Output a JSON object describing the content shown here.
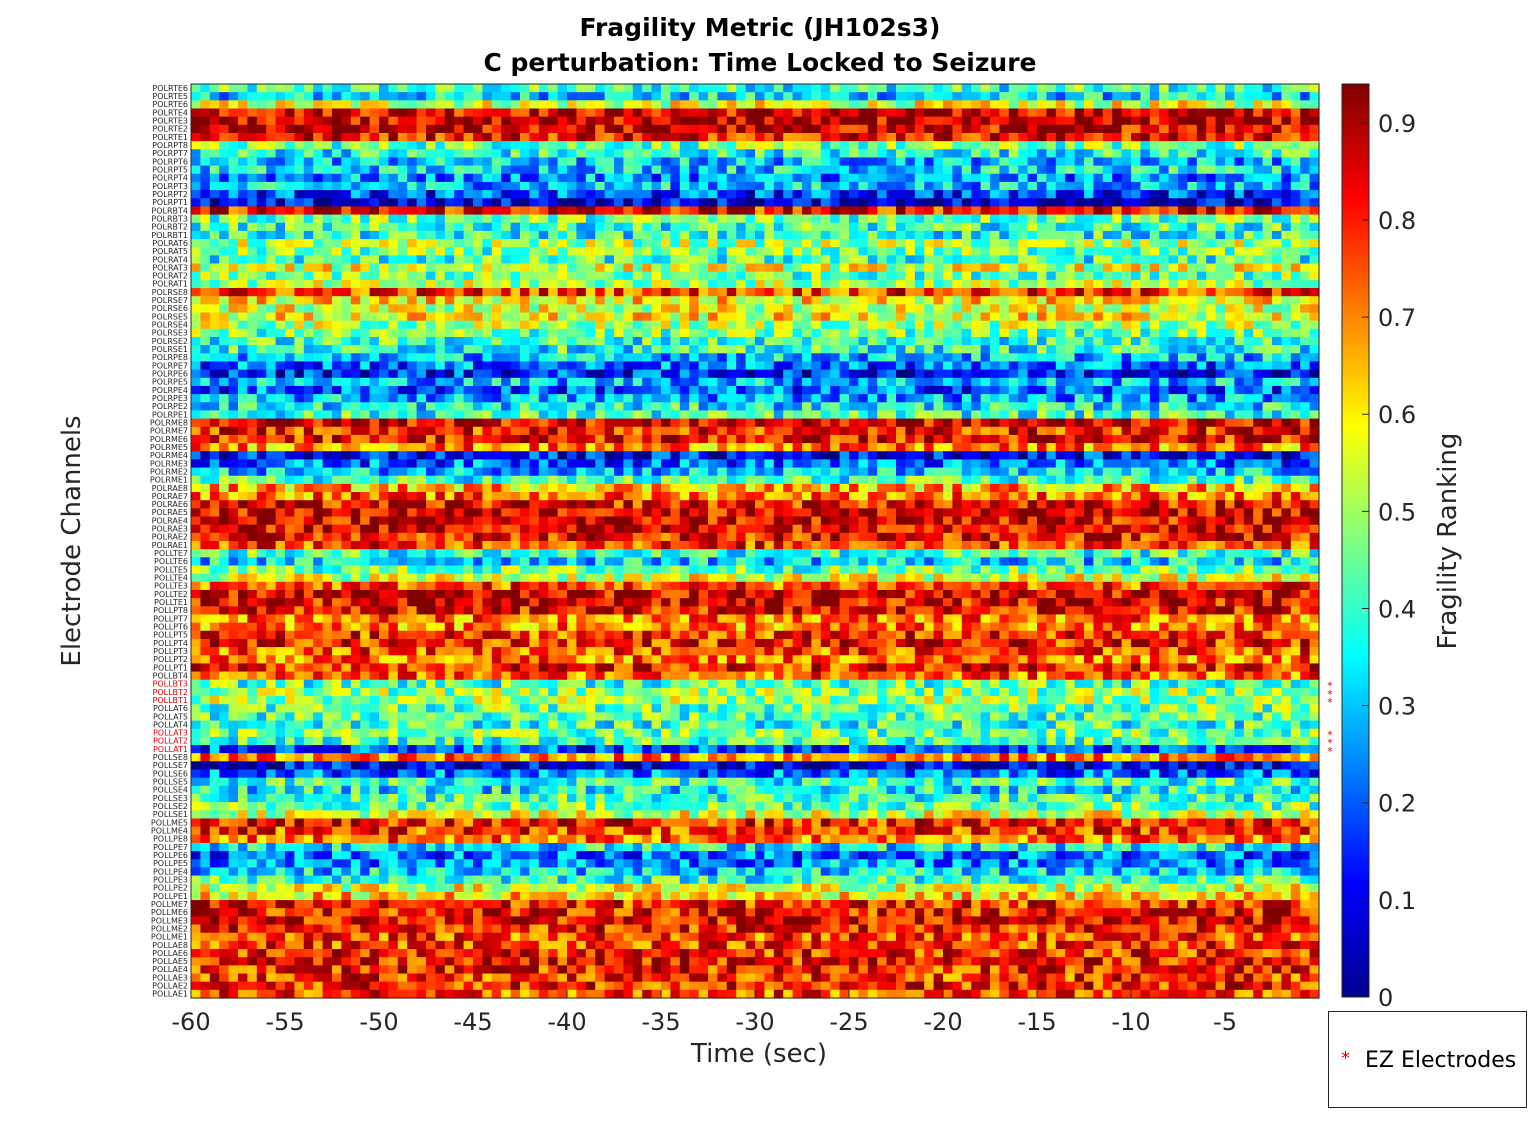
{
  "chart_data": {
    "type": "heatmap",
    "title": "Fragility Metric (JH102s3)",
    "subtitle": "C perturbation:  Time Locked to Seizure",
    "xlabel": "Time (sec)",
    "ylabel": "Electrode Channels",
    "xlim": [
      -60,
      0
    ],
    "x_ticks": [
      "-60",
      "-55",
      "-50",
      "-45",
      "-40",
      "-35",
      "-30",
      "-25",
      "-20",
      "-15",
      "-10",
      "-5"
    ],
    "colorbar": {
      "label": "Fragility Ranking",
      "colormap": "jet",
      "clim": [
        0,
        0.94
      ],
      "ticks": [
        "0",
        "0.1",
        "0.2",
        "0.3",
        "0.4",
        "0.5",
        "0.6",
        "0.7",
        "0.8",
        "0.9"
      ]
    },
    "n_time_windows": 120,
    "channels": [
      {
        "name": "POLRTE6",
        "level": 0.4
      },
      {
        "name": "POLRTE5",
        "level": 0.32
      },
      {
        "name": "POLRTE6",
        "level": 0.55
      },
      {
        "name": "POLRTE4",
        "level": 0.86
      },
      {
        "name": "POLRTE3",
        "level": 0.88
      },
      {
        "name": "POLRTE2",
        "level": 0.86
      },
      {
        "name": "POLRTE1",
        "level": 0.83
      },
      {
        "name": "POLRPT8",
        "level": 0.45
      },
      {
        "name": "POLRPT7",
        "level": 0.38
      },
      {
        "name": "POLRPT6",
        "level": 0.3
      },
      {
        "name": "POLRPT5",
        "level": 0.33
      },
      {
        "name": "POLRPT4",
        "level": 0.25
      },
      {
        "name": "POLRPT3",
        "level": 0.3
      },
      {
        "name": "POLRPT2",
        "level": 0.18
      },
      {
        "name": "POLRPT1",
        "level": 0.08
      },
      {
        "name": "POLRBT4",
        "level": 0.82
      },
      {
        "name": "POLRBT3",
        "level": 0.45
      },
      {
        "name": "POLRBT2",
        "level": 0.4
      },
      {
        "name": "POLRBT1",
        "level": 0.38
      },
      {
        "name": "POLRAT6",
        "level": 0.5
      },
      {
        "name": "POLRAT5",
        "level": 0.45
      },
      {
        "name": "POLRAT4",
        "level": 0.4
      },
      {
        "name": "POLRAT3",
        "level": 0.55
      },
      {
        "name": "POLRAT2",
        "level": 0.45
      },
      {
        "name": "POLRAT1",
        "level": 0.5
      },
      {
        "name": "POLRSE8",
        "level": 0.78
      },
      {
        "name": "POLRSE7",
        "level": 0.6
      },
      {
        "name": "POLRSE6",
        "level": 0.55
      },
      {
        "name": "POLRSE5",
        "level": 0.58
      },
      {
        "name": "POLRSE4",
        "level": 0.5
      },
      {
        "name": "POLRSE3",
        "level": 0.45
      },
      {
        "name": "POLRSE2",
        "level": 0.4
      },
      {
        "name": "POLRSE1",
        "level": 0.38
      },
      {
        "name": "POLRPE8",
        "level": 0.3
      },
      {
        "name": "POLRPE7",
        "level": 0.22
      },
      {
        "name": "POLRPE6",
        "level": 0.15
      },
      {
        "name": "POLRPE5",
        "level": 0.3
      },
      {
        "name": "POLRPE4",
        "level": 0.2
      },
      {
        "name": "POLRPE3",
        "level": 0.28
      },
      {
        "name": "POLRPE2",
        "level": 0.35
      },
      {
        "name": "POLRPE1",
        "level": 0.4
      },
      {
        "name": "POLRME8",
        "level": 0.86
      },
      {
        "name": "POLRME7",
        "level": 0.8
      },
      {
        "name": "POLRME6",
        "level": 0.82
      },
      {
        "name": "POLRME5",
        "level": 0.7
      },
      {
        "name": "POLRME4",
        "level": 0.12
      },
      {
        "name": "POLRME3",
        "level": 0.22
      },
      {
        "name": "POLRME2",
        "level": 0.3
      },
      {
        "name": "POLRME1",
        "level": 0.4
      },
      {
        "name": "POLRAE8",
        "level": 0.66
      },
      {
        "name": "POLRAE7",
        "level": 0.72
      },
      {
        "name": "POLRAE6",
        "level": 0.82
      },
      {
        "name": "POLRAE5",
        "level": 0.86
      },
      {
        "name": "POLRAE4",
        "level": 0.84
      },
      {
        "name": "POLRAE3",
        "level": 0.86
      },
      {
        "name": "POLRAE2",
        "level": 0.82
      },
      {
        "name": "POLRAE1",
        "level": 0.78
      },
      {
        "name": "POLLTE7",
        "level": 0.4
      },
      {
        "name": "POLLTE6",
        "level": 0.32
      },
      {
        "name": "POLLTE5",
        "level": 0.45
      },
      {
        "name": "POLLTE4",
        "level": 0.55
      },
      {
        "name": "POLLTE3",
        "level": 0.76
      },
      {
        "name": "POLLTE2",
        "level": 0.86
      },
      {
        "name": "POLLTE1",
        "level": 0.84
      },
      {
        "name": "POLLPT8",
        "level": 0.82
      },
      {
        "name": "POLLPT7",
        "level": 0.72
      },
      {
        "name": "POLLPT6",
        "level": 0.7
      },
      {
        "name": "POLLPT5",
        "level": 0.78
      },
      {
        "name": "POLLPT4",
        "level": 0.8
      },
      {
        "name": "POLLPT3",
        "level": 0.76
      },
      {
        "name": "POLLPT2",
        "level": 0.72
      },
      {
        "name": "POLLPT1",
        "level": 0.8
      },
      {
        "name": "POLLBT4",
        "level": 0.74
      },
      {
        "name": "POLLBT3",
        "level": 0.42,
        "ez": true
      },
      {
        "name": "POLLBT2",
        "level": 0.48,
        "ez": true
      },
      {
        "name": "POLLBT1",
        "level": 0.5,
        "ez": true
      },
      {
        "name": "POLLAT6",
        "level": 0.45
      },
      {
        "name": "POLLAT5",
        "level": 0.42
      },
      {
        "name": "POLLAT4",
        "level": 0.4
      },
      {
        "name": "POLLAT3",
        "level": 0.45,
        "ez": true
      },
      {
        "name": "POLLAT2",
        "level": 0.42,
        "ez": true
      },
      {
        "name": "POLLAT1",
        "level": 0.18,
        "ez": true
      },
      {
        "name": "POLLSE8",
        "level": 0.7
      },
      {
        "name": "POLLSE7",
        "level": 0.1
      },
      {
        "name": "POLLSE6",
        "level": 0.22
      },
      {
        "name": "POLLSE5",
        "level": 0.4
      },
      {
        "name": "POLLSE4",
        "level": 0.35
      },
      {
        "name": "POLLSE3",
        "level": 0.4
      },
      {
        "name": "POLLSE2",
        "level": 0.45
      },
      {
        "name": "POLLSE1",
        "level": 0.55
      },
      {
        "name": "POLLME5",
        "level": 0.8
      },
      {
        "name": "POLLME4",
        "level": 0.78
      },
      {
        "name": "POLLPE8",
        "level": 0.72
      },
      {
        "name": "POLLPE7",
        "level": 0.35
      },
      {
        "name": "POLLPE6",
        "level": 0.22
      },
      {
        "name": "POLLPE5",
        "level": 0.25
      },
      {
        "name": "POLLPE4",
        "level": 0.32
      },
      {
        "name": "POLLPE3",
        "level": 0.4
      },
      {
        "name": "POLLPE2",
        "level": 0.55
      },
      {
        "name": "POLLPE1",
        "level": 0.62
      },
      {
        "name": "POLLME7",
        "level": 0.8
      },
      {
        "name": "POLLME6",
        "level": 0.82
      },
      {
        "name": "POLLME3",
        "level": 0.84
      },
      {
        "name": "POLLME2",
        "level": 0.8
      },
      {
        "name": "POLLME1",
        "level": 0.76
      },
      {
        "name": "POLLAE8",
        "level": 0.78
      },
      {
        "name": "POLLAE6",
        "level": 0.8
      },
      {
        "name": "POLLAE5",
        "level": 0.82
      },
      {
        "name": "POLLAE4",
        "level": 0.8
      },
      {
        "name": "POLLAE3",
        "level": 0.78
      },
      {
        "name": "POLLAE2",
        "level": 0.8
      },
      {
        "name": "POLLAE1",
        "level": 0.76
      }
    ],
    "legend": {
      "marker": "*",
      "label": "EZ Electrodes",
      "color": "#e00000"
    }
  }
}
